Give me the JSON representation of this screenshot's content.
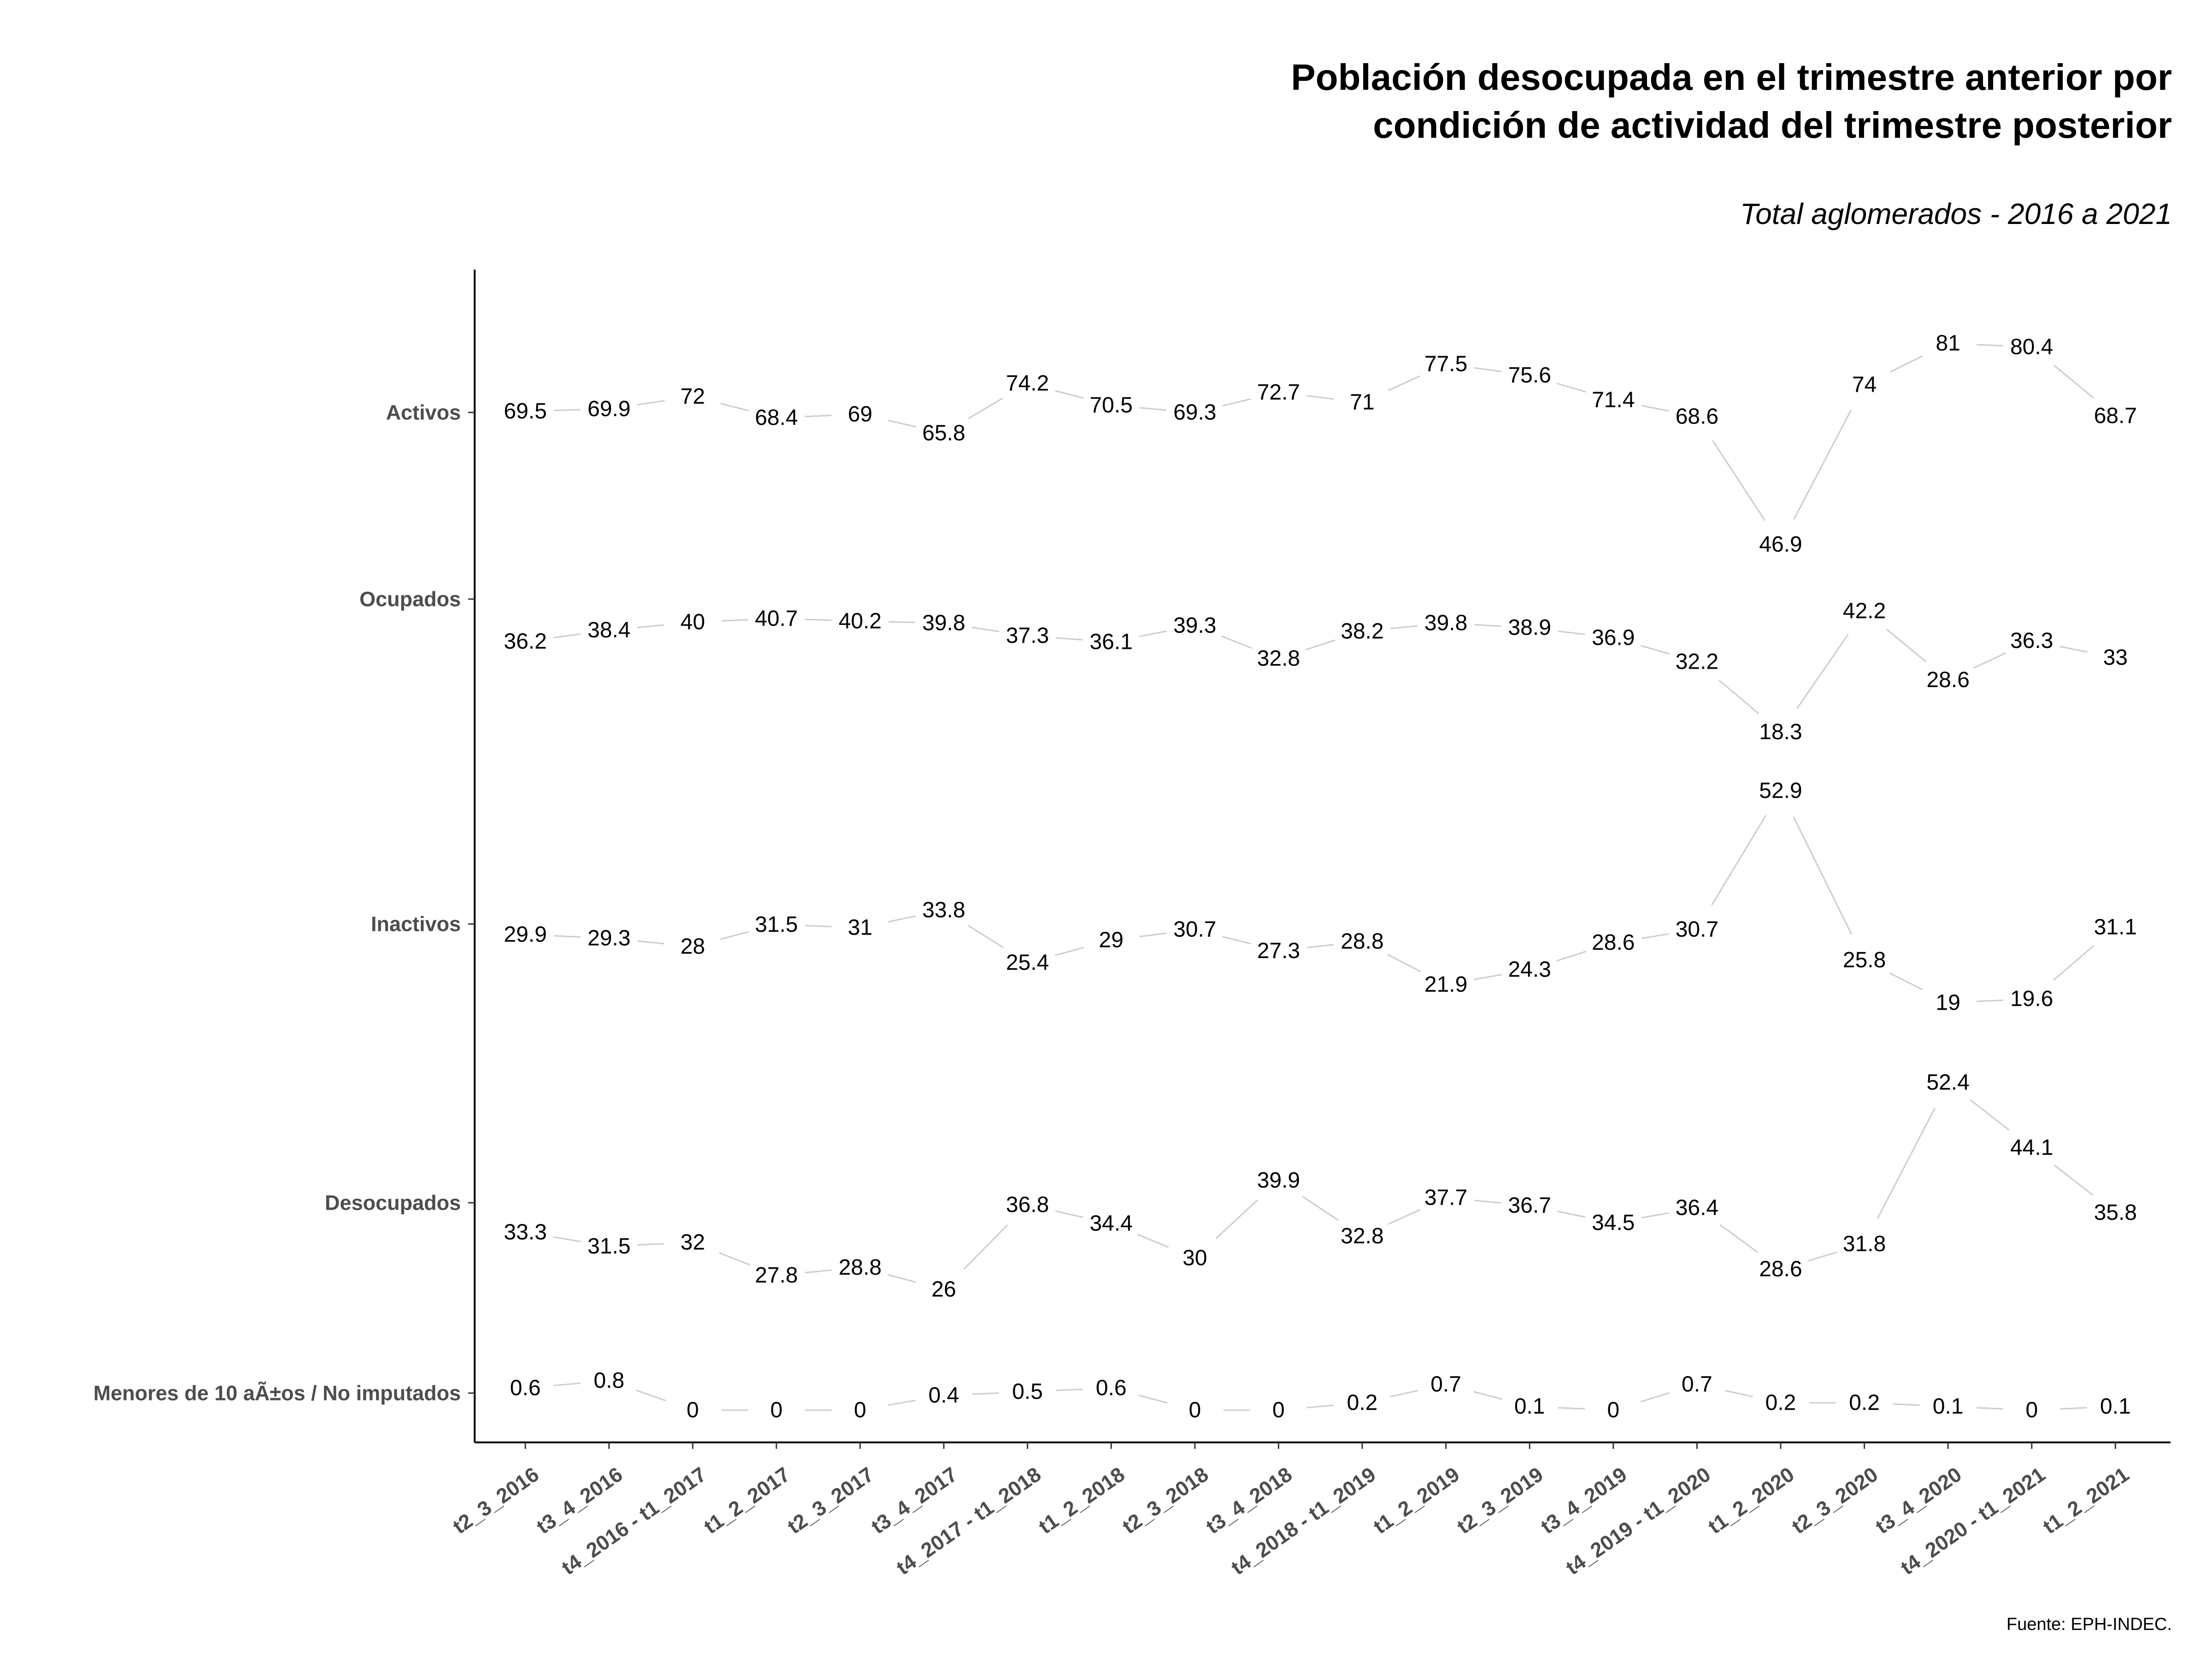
{
  "title_line1": "Población desocupada en el trimestre anterior por",
  "title_line2": "condición de actividad del trimestre posterior",
  "subtitle": "Total aglomerados - 2016 a 2021",
  "caption": "Fuente: EPH-INDEC.",
  "chart_data": {
    "type": "line",
    "categories": [
      "t2_3_2016",
      "t3_4_2016",
      "t4_2016 - t1_2017",
      "t1_2_2017",
      "t2_3_2017",
      "t3_4_2017",
      "t4_2017 - t1_2018",
      "t1_2_2018",
      "t2_3_2018",
      "t3_4_2018",
      "t4_2018 - t1_2019",
      "t1_2_2019",
      "t2_3_2019",
      "t3_4_2019",
      "t4_2019 - t1_2020",
      "t1_2_2020",
      "t2_3_2020",
      "t3_4_2020",
      "t4_2020 - t1_2021",
      "t1_2_2021"
    ],
    "y_axis_labels": [
      "Activos",
      "Ocupados",
      "Inactivos",
      "Desocupados",
      "Menores de 10 aÃ±os / No imputados"
    ],
    "series": [
      {
        "name": "Activos",
        "values": [
          69.5,
          69.9,
          72,
          68.4,
          69,
          65.8,
          74.2,
          70.5,
          69.3,
          72.7,
          71,
          77.5,
          75.6,
          71.4,
          68.6,
          46.9,
          74,
          81,
          80.4,
          68.7
        ]
      },
      {
        "name": "Ocupados",
        "values": [
          36.2,
          38.4,
          40,
          40.7,
          40.2,
          39.8,
          37.3,
          36.1,
          39.3,
          32.8,
          38.2,
          39.8,
          38.9,
          36.9,
          32.2,
          18.3,
          42.2,
          28.6,
          36.3,
          33
        ]
      },
      {
        "name": "Inactivos",
        "values": [
          29.9,
          29.3,
          28,
          31.5,
          31,
          33.8,
          25.4,
          29,
          30.7,
          27.3,
          28.8,
          21.9,
          24.3,
          28.6,
          30.7,
          52.9,
          25.8,
          19,
          19.6,
          31.1
        ]
      },
      {
        "name": "Desocupados",
        "values": [
          33.3,
          31.5,
          32,
          27.8,
          28.8,
          26,
          36.8,
          34.4,
          30,
          39.9,
          32.8,
          37.7,
          36.7,
          34.5,
          36.4,
          28.6,
          31.8,
          52.4,
          44.1,
          35.8
        ]
      },
      {
        "name": "Menores de 10 aÃ±os / No imputados",
        "values": [
          0.6,
          0.8,
          0,
          0,
          0,
          0.4,
          0.5,
          0.6,
          0,
          0,
          0.2,
          0.7,
          0.1,
          0,
          0.7,
          0.2,
          0.2,
          0.1,
          0,
          0.1
        ]
      }
    ],
    "line_color": "#cccccc",
    "grid": false
  }
}
